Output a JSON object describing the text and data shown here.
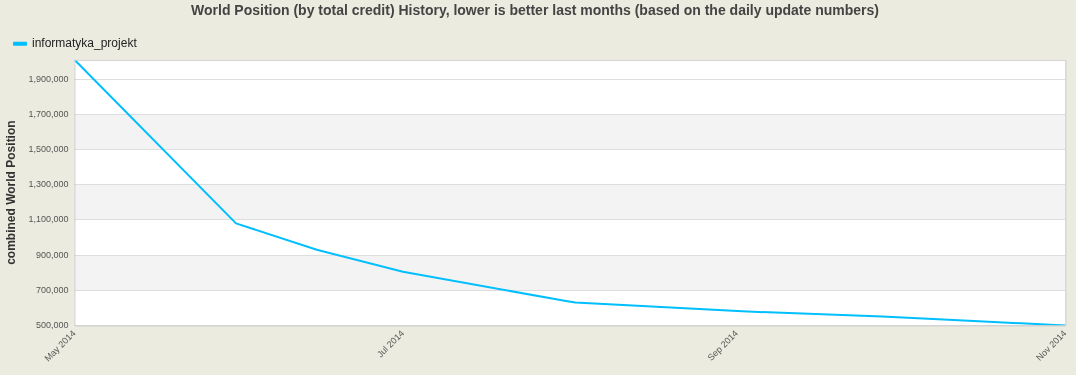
{
  "chart_data": {
    "type": "line",
    "title": "World Position (by total credit) History, lower is better last months (based on the daily update numbers)",
    "ylabel": "combined World Position",
    "series": [
      {
        "name": "informatyka_projekt",
        "color": "#00bfff",
        "x": [
          "2014-05-01",
          "2014-05-31",
          "2014-06-15",
          "2014-07-01",
          "2014-07-31",
          "2014-08-02",
          "2014-09-02",
          "2014-09-28",
          "2014-10-15",
          "2014-11-01"
        ],
        "values": [
          2010000,
          1080000,
          930000,
          805000,
          640000,
          630000,
          580000,
          550000,
          525000,
          500000
        ]
      }
    ],
    "xlim": [
      "2014-05-01",
      "2014-11-01"
    ],
    "xticks": [
      {
        "value": "2014-05-01",
        "label": "May 2014"
      },
      {
        "value": "2014-07-01",
        "label": "Jul 2014"
      },
      {
        "value": "2014-09-01",
        "label": "Sep 2014"
      },
      {
        "value": "2014-11-01",
        "label": "Nov 2014"
      }
    ],
    "ylim": [
      500000,
      2010000
    ],
    "yticks": [
      {
        "value": 500000,
        "label": "500,000"
      },
      {
        "value": 700000,
        "label": "700,000"
      },
      {
        "value": 900000,
        "label": "900,000"
      },
      {
        "value": 1100000,
        "label": "1,100,000"
      },
      {
        "value": 1300000,
        "label": "1,300,000"
      },
      {
        "value": 1500000,
        "label": "1,500,000"
      },
      {
        "value": 1700000,
        "label": "1,700,000"
      },
      {
        "value": 1900000,
        "label": "1,900,000"
      }
    ],
    "grid": "y",
    "legend": "top left",
    "marker": "none",
    "line_style": "solid"
  }
}
